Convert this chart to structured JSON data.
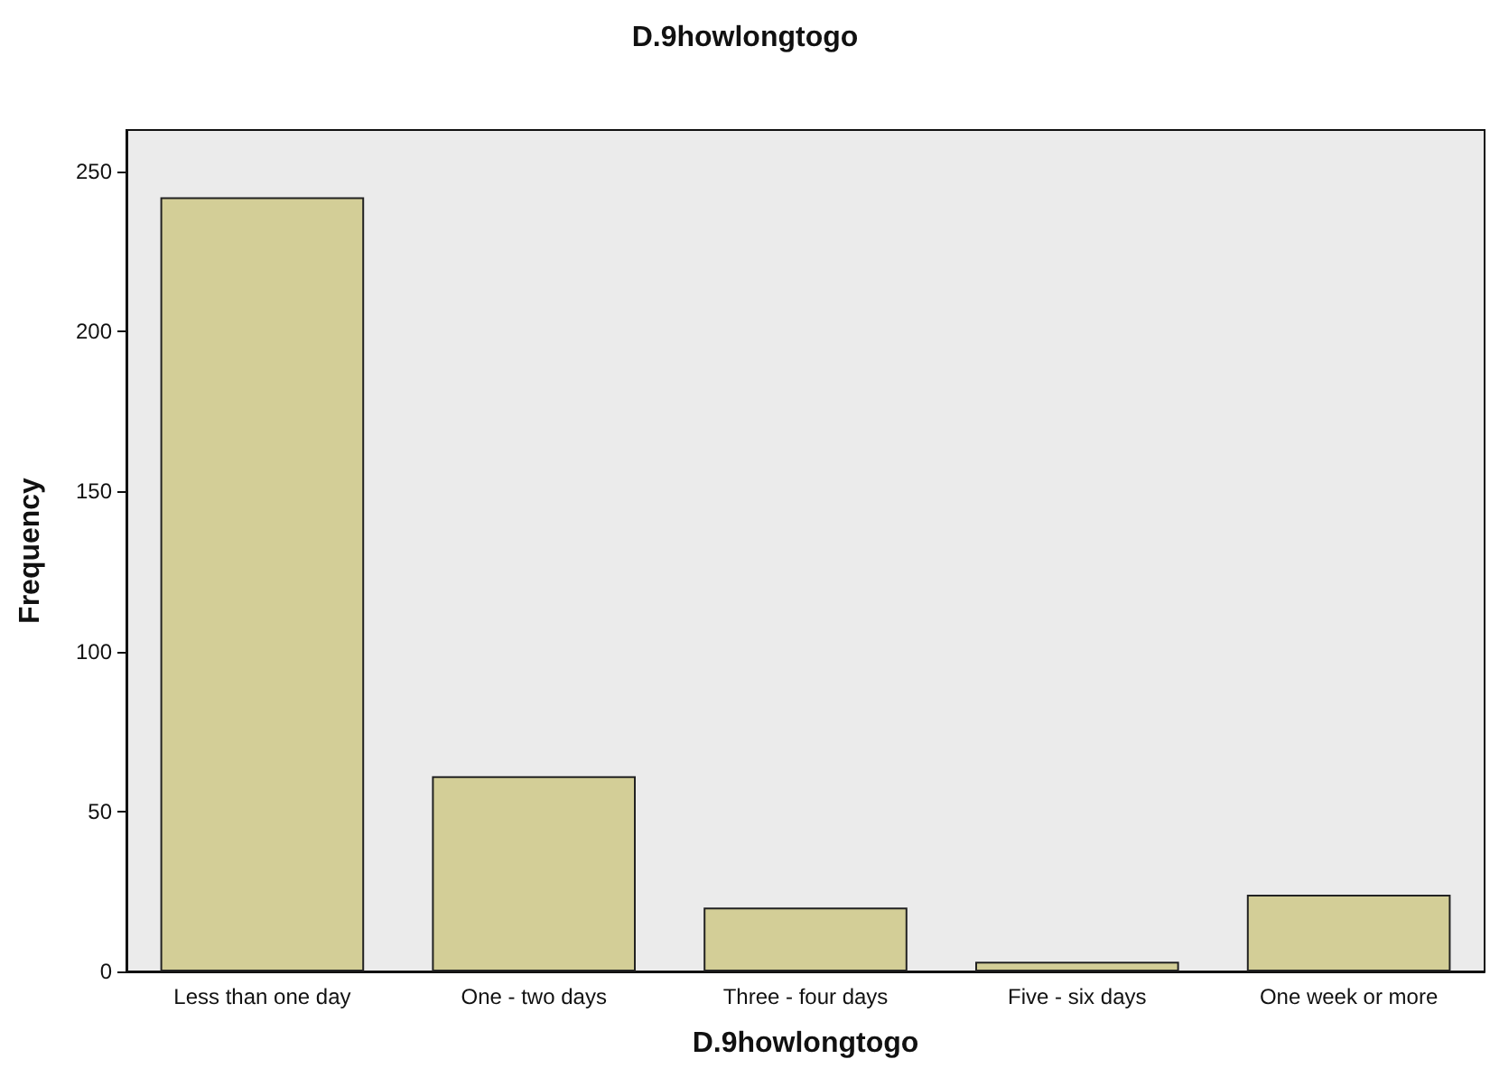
{
  "chart_data": {
    "type": "bar",
    "title": "D.9howlongtogo",
    "xlabel": "D.9howlongtogo",
    "ylabel": "Frequency",
    "categories": [
      "Less than one day",
      "One - two days",
      "Three - four days",
      "Five - six days",
      "One week or more"
    ],
    "values": [
      242,
      61,
      20,
      3,
      24
    ],
    "color": "#d3ce97",
    "ylim": [
      0,
      263
    ],
    "yticks": [
      0,
      50,
      100,
      150,
      200,
      250
    ],
    "grid": false
  }
}
